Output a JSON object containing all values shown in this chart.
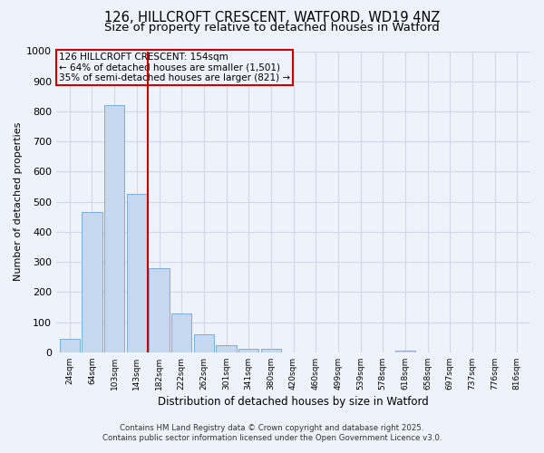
{
  "title1": "126, HILLCROFT CRESCENT, WATFORD, WD19 4NZ",
  "title2": "Size of property relative to detached houses in Watford",
  "xlabel": "Distribution of detached houses by size in Watford",
  "ylabel": "Number of detached properties",
  "categories": [
    "24sqm",
    "64sqm",
    "103sqm",
    "143sqm",
    "182sqm",
    "222sqm",
    "262sqm",
    "301sqm",
    "341sqm",
    "380sqm",
    "420sqm",
    "460sqm",
    "499sqm",
    "539sqm",
    "578sqm",
    "618sqm",
    "658sqm",
    "697sqm",
    "737sqm",
    "776sqm",
    "816sqm"
  ],
  "values": [
    45,
    465,
    820,
    525,
    280,
    130,
    60,
    25,
    12,
    12,
    0,
    0,
    0,
    0,
    0,
    5,
    0,
    0,
    0,
    0,
    0
  ],
  "bar_color": "#c5d8f0",
  "bar_edge_color": "#7aaed6",
  "grid_color": "#d0d8e8",
  "background_color": "#eef2fa",
  "property_line_x": 3.5,
  "property_line_color": "#cc0000",
  "annotation_line1": "126 HILLCROFT CRESCENT: 154sqm",
  "annotation_line2": "← 64% of detached houses are smaller (1,501)",
  "annotation_line3": "35% of semi-detached houses are larger (821) →",
  "annotation_box_color": "#cc0000",
  "ylim": [
    0,
    1000
  ],
  "yticks": [
    0,
    100,
    200,
    300,
    400,
    500,
    600,
    700,
    800,
    900,
    1000
  ],
  "footnote1": "Contains HM Land Registry data © Crown copyright and database right 2025.",
  "footnote2": "Contains public sector information licensed under the Open Government Licence v3.0.",
  "title1_fontsize": 10.5,
  "title2_fontsize": 9.5,
  "annotation_fontsize": 7.5,
  "xlabel_fontsize": 8.5,
  "ylabel_fontsize": 8
}
